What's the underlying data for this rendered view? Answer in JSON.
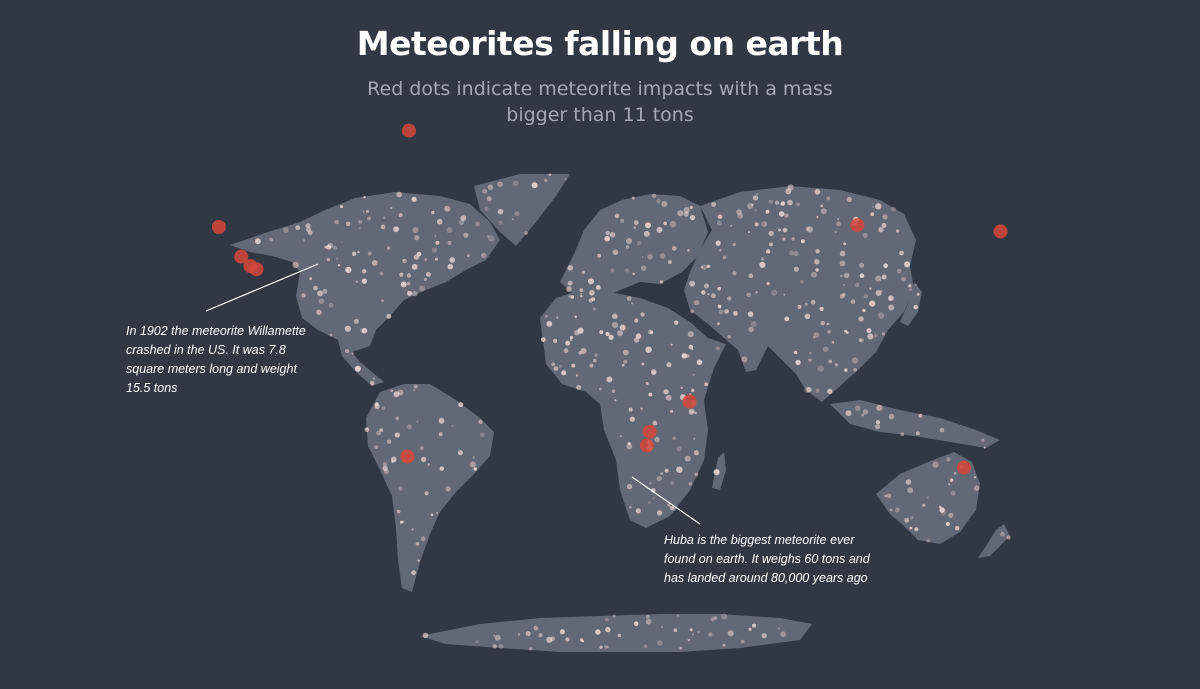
{
  "title": "Meteorites falling on earth",
  "subtitle": "Red dots indicate meteorite impacts with a mass bigger than 11 tons",
  "annotations": {
    "willamette": "In 1902 the meteorite Willamette crashed in the US. It was 7.8 square meters long and weight 15.5 tons",
    "hoba": "Huba is the biggest meteorite ever found on earth. It weighs 60 tons and has landed around 80,000 years ago"
  },
  "colors": {
    "background": "#323744",
    "land": "#626876",
    "small_meteorite": "#f4dcdc",
    "large_meteorite": "#d6463a",
    "title": "#ffffff",
    "subtitle": "#a3a8b3"
  },
  "large_meteorites": [
    {
      "lon": -123.3,
      "lat": 45.4
    },
    {
      "lon": -116.0,
      "lat": 36.0
    },
    {
      "lon": -113.0,
      "lat": 33.0
    },
    {
      "lon": -111.0,
      "lat": 32.0
    },
    {
      "lon": -61.5,
      "lat": -27.5
    },
    {
      "lon": -61.0,
      "lat": 76.0
    },
    {
      "lon": 86.0,
      "lat": 46.0
    },
    {
      "lon": 133.0,
      "lat": 44.0
    },
    {
      "lon": 17.9,
      "lat": -19.6
    },
    {
      "lon": 17.0,
      "lat": -24.0
    },
    {
      "lon": 31.0,
      "lat": -10.0
    },
    {
      "lon": 121.0,
      "lat": -31.0
    }
  ]
}
